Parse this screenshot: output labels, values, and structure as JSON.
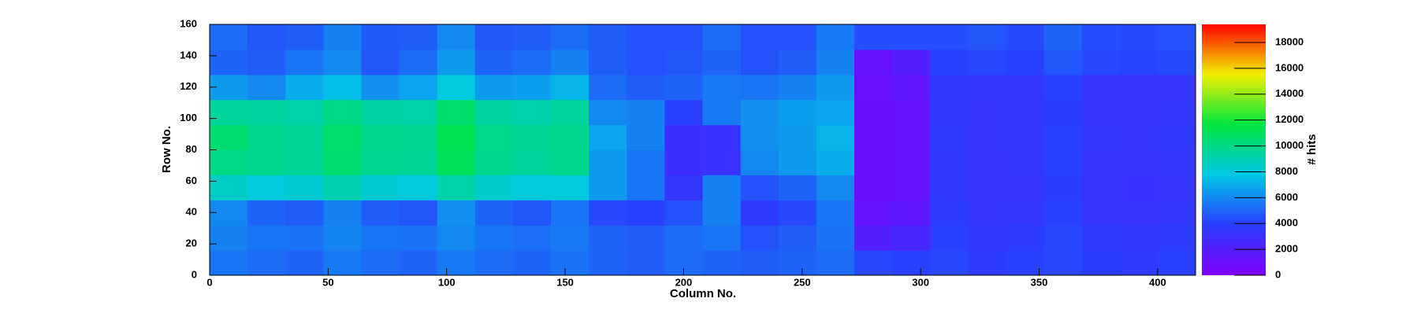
{
  "chart_data": {
    "type": "heatmap",
    "x_label": "Column No.",
    "y_label": "Row No.",
    "z_label": "# hits",
    "xlim": [
      0,
      416
    ],
    "ylim": [
      0,
      160
    ],
    "zlim": [
      0,
      19400
    ],
    "xticks": [
      0,
      50,
      100,
      150,
      200,
      250,
      300,
      350,
      400
    ],
    "yticks": [
      0,
      20,
      40,
      60,
      80,
      100,
      120,
      140,
      160
    ],
    "zticks": [
      0,
      2000,
      4000,
      6000,
      8000,
      10000,
      12000,
      14000,
      16000,
      18000
    ],
    "x_bins": [
      0,
      16,
      32,
      48,
      64,
      80,
      96,
      112,
      128,
      144,
      160,
      176,
      192,
      208,
      224,
      240,
      256,
      272,
      288,
      304,
      320,
      336,
      352,
      368,
      384,
      400,
      416
    ],
    "y_bins": [
      0,
      16,
      32,
      48,
      64,
      80,
      96,
      112,
      128,
      144,
      160
    ],
    "colormap": [
      "#7f00ff",
      "#2a3cff",
      "#00c8e6",
      "#00e640",
      "#f0f000",
      "#ff0000"
    ],
    "values": [
      [
        5500,
        5200,
        5000,
        5600,
        5200,
        5000,
        5600,
        5200,
        5000,
        5400,
        5000,
        4800,
        5200,
        5000,
        4800,
        5000,
        5200,
        4200,
        4000,
        4200,
        3800,
        4000,
        4200,
        3900,
        3800,
        4000
      ],
      [
        5800,
        5500,
        5400,
        5900,
        5500,
        5400,
        6000,
        5500,
        5300,
        5600,
        5000,
        4800,
        5200,
        5500,
        4500,
        4800,
        5400,
        2000,
        2500,
        4000,
        3600,
        3800,
        4200,
        3700,
        3600,
        3800
      ],
      [
        6000,
        5000,
        4800,
        5800,
        4800,
        4600,
        6200,
        5000,
        4600,
        5500,
        4200,
        4000,
        4500,
        5800,
        3800,
        4200,
        5500,
        1200,
        1500,
        3800,
        3400,
        3500,
        4000,
        3400,
        3300,
        3500
      ],
      [
        8500,
        8000,
        8200,
        9000,
        8200,
        8000,
        9200,
        8300,
        8000,
        8000,
        6500,
        5500,
        3500,
        5800,
        4500,
        5000,
        6000,
        1000,
        1200,
        3600,
        3300,
        3400,
        3900,
        3300,
        3200,
        3400
      ],
      [
        10000,
        9800,
        9600,
        10500,
        9700,
        9600,
        11000,
        9800,
        9500,
        9800,
        6500,
        5500,
        3000,
        3200,
        6000,
        6500,
        7000,
        1000,
        1200,
        3600,
        3300,
        3500,
        4000,
        3400,
        3300,
        3500
      ],
      [
        10500,
        9800,
        9600,
        10600,
        9800,
        9700,
        11200,
        9900,
        9600,
        9800,
        6800,
        5800,
        3000,
        3200,
        6200,
        6500,
        7200,
        1000,
        1200,
        3700,
        3400,
        3500,
        4000,
        3500,
        3400,
        3600
      ],
      [
        9500,
        9400,
        9200,
        10000,
        9300,
        9200,
        10600,
        9400,
        9100,
        9500,
        6000,
        5800,
        4000,
        5600,
        6200,
        6600,
        6800,
        1000,
        1200,
        3600,
        3400,
        3500,
        3900,
        3400,
        3300,
        3500
      ],
      [
        6500,
        6000,
        7000,
        7500,
        6200,
        6800,
        8000,
        6500,
        6600,
        7200,
        5200,
        4800,
        5000,
        5600,
        5500,
        5800,
        6500,
        1100,
        1400,
        3600,
        3500,
        3500,
        4000,
        3400,
        3300,
        3400
      ],
      [
        5000,
        4800,
        5500,
        6000,
        4600,
        5200,
        6500,
        5000,
        5200,
        5800,
        4800,
        4500,
        4600,
        5000,
        4500,
        4800,
        5800,
        1200,
        2000,
        4000,
        4200,
        4000,
        4600,
        4200,
        4100,
        4300
      ],
      [
        5200,
        4600,
        4800,
        5800,
        4700,
        4800,
        6000,
        4600,
        4800,
        5200,
        4800,
        4500,
        4500,
        5200,
        4500,
        4500,
        5600,
        4400,
        4400,
        4400,
        4600,
        4300,
        5000,
        4400,
        4300,
        4500
      ]
    ]
  }
}
